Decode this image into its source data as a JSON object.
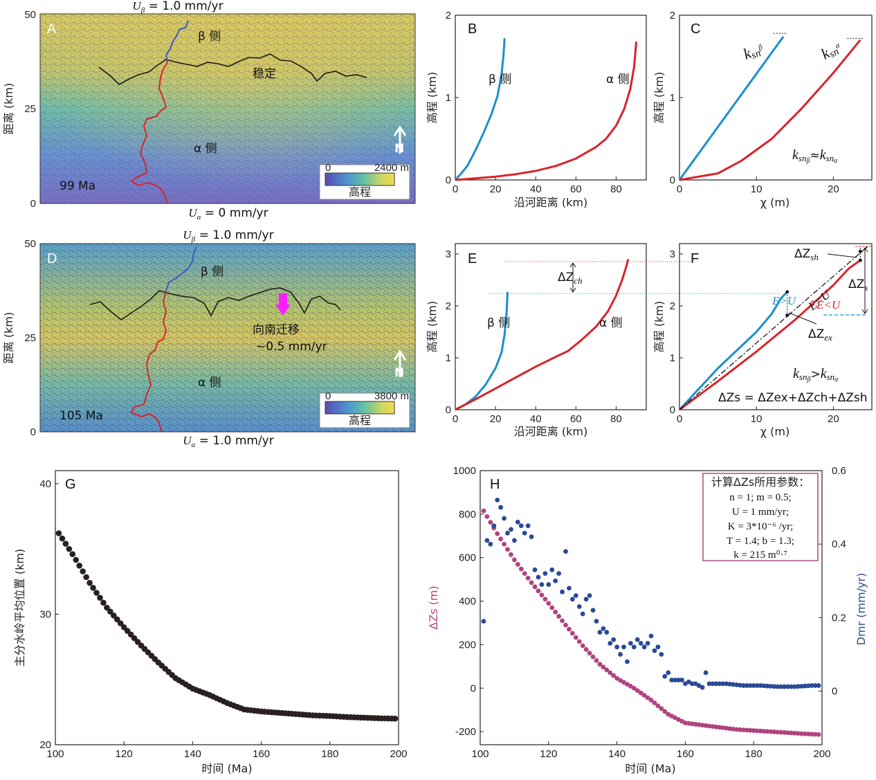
{
  "colors": {
    "red": "#d8232a",
    "blue": "#1a8fcc",
    "magenta": "#b0437e",
    "navy": "#2a4a96",
    "dark": "#2a2020"
  },
  "map_A": {
    "label": "A",
    "top_uplift": "U",
    "top_uplift_sub": "β",
    "top_uplift_val": " = 1.0 mm/yr",
    "bottom_uplift": "U",
    "bottom_uplift_sub": "α",
    "bottom_uplift_val": " = 0 mm/yr",
    "beta_side": "β 侧",
    "alpha_side": "α 侧",
    "stable": "稳定",
    "age": "99 Ma",
    "north": "N",
    "ylabel": "距离 (km)",
    "yticks": [
      "50",
      "25",
      "0"
    ],
    "legend": {
      "min": "0",
      "max": "2400 m",
      "title": "高程"
    }
  },
  "map_D": {
    "label": "D",
    "top_uplift": "U",
    "top_uplift_sub": "β",
    "top_uplift_val": " = 1.0 mm/yr",
    "bottom_uplift": "U",
    "bottom_uplift_sub": "α",
    "bottom_uplift_val": " = 1.0 mm/yr",
    "beta_side": "β 侧",
    "alpha_side": "α 侧",
    "migration_1": "向南迁移",
    "migration_2": "~0.5 mm/yr",
    "age": "105 Ma",
    "north": "N",
    "ylabel": "距离 (km)",
    "yticks": [
      "50",
      "25",
      "0"
    ],
    "legend": {
      "min": "0",
      "max": "3800 m",
      "title": "高程"
    }
  },
  "panel_B": {
    "label": "B",
    "xlabel": "沿河距离 (km)",
    "ylabel": "高程 (km)",
    "beta": "β 侧",
    "alpha": "α 侧"
  },
  "panel_C": {
    "label": "C",
    "xlabel": "χ (m)",
    "ylabel": "高程 (km)",
    "k": "k",
    "sn": "sn",
    "beta_sub": "β",
    "alpha_sub": "α",
    "approx": "≈"
  },
  "panel_E": {
    "label": "E",
    "xlabel": "沿河距离 (km)",
    "ylabel": "高程 (km)",
    "beta": "β 侧",
    "alpha": "α 侧",
    "dz": "ΔZ",
    "dz_sub": "ch"
  },
  "panel_F": {
    "label": "F",
    "xlabel": "χ (m)",
    "ylabel": "高程 (km)",
    "dzsh": "ΔZ",
    "dzsh_sub": "sh",
    "dzs": "ΔZ",
    "dzs_sub": "s",
    "dzex": "ΔZ",
    "dzex_sub": "ex",
    "e_eq_u": "E=U",
    "e_gt_u": "E>U",
    "e_lt_u": "E<U",
    "gt": ">",
    "equation": "ΔZs = ΔZex+ΔZch+ΔZsh"
  },
  "panel_G": {
    "label": "G",
    "xlabel": "时间 (Ma)",
    "ylabel": "主分水岭平均位置 (km)"
  },
  "panel_H": {
    "label": "H",
    "xlabel": "时间 (Ma)",
    "ylabel_left": "ΔZs (m)",
    "ylabel_right": "Dmr (mm/yr)",
    "param_title": "计算ΔZs所用参数：",
    "params": [
      "n = 1; m = 0.5;",
      "U = 1 mm/yr;",
      "K = 3*10⁻⁶ /yr;",
      "T = 1.4; b = 1.3;",
      "k = 215 m⁰·⁷"
    ]
  },
  "chart_data": [
    {
      "panel": "B",
      "type": "line",
      "xlim": [
        0,
        95
      ],
      "ylim": [
        0,
        2
      ],
      "xticks": [
        0,
        20,
        40,
        60,
        80
      ],
      "yticks": [
        0,
        1,
        2
      ],
      "series": [
        {
          "name": "β 侧",
          "color": "#1a8fcc",
          "x": [
            0,
            3,
            6,
            10,
            14,
            18,
            21,
            23,
            24,
            24.5
          ],
          "y": [
            0,
            0.08,
            0.17,
            0.36,
            0.57,
            0.8,
            1.02,
            1.28,
            1.52,
            1.72
          ]
        },
        {
          "name": "α 侧",
          "color": "#d8232a",
          "x": [
            0,
            10,
            20,
            30,
            40,
            50,
            60,
            70,
            75,
            80,
            84,
            87,
            89,
            90
          ],
          "y": [
            0,
            0.02,
            0.04,
            0.07,
            0.11,
            0.17,
            0.26,
            0.4,
            0.5,
            0.66,
            0.86,
            1.1,
            1.38,
            1.68
          ]
        }
      ]
    },
    {
      "panel": "C",
      "type": "line",
      "xlim": [
        0,
        25
      ],
      "ylim": [
        0,
        2
      ],
      "xticks": [
        0,
        10,
        20
      ],
      "yticks": [
        0,
        1,
        2
      ],
      "series": [
        {
          "name": "β",
          "color": "#1a8fcc",
          "x": [
            0,
            13.5
          ],
          "y": [
            0,
            1.74
          ]
        },
        {
          "name": "α",
          "color": "#d8232a",
          "x": [
            0,
            5,
            8,
            12,
            16,
            20,
            23.5
          ],
          "y": [
            0,
            0.08,
            0.23,
            0.5,
            0.88,
            1.3,
            1.7
          ]
        }
      ]
    },
    {
      "panel": "E",
      "type": "line",
      "xlim": [
        0,
        95
      ],
      "ylim": [
        0,
        3.2
      ],
      "xticks": [
        0,
        20,
        40,
        60,
        80
      ],
      "yticks": [
        0,
        1,
        2,
        3
      ],
      "series": [
        {
          "name": "β 侧",
          "color": "#1a8fcc",
          "x": [
            0,
            5,
            10,
            15,
            20,
            23,
            24.5,
            25.5,
            26
          ],
          "y": [
            0,
            0.1,
            0.25,
            0.48,
            0.8,
            1.1,
            1.45,
            1.85,
            2.27
          ]
        },
        {
          "name": "α 侧",
          "color": "#d8232a",
          "x": [
            0,
            10,
            20,
            30,
            40,
            50,
            56,
            63,
            70,
            76,
            80,
            83,
            85,
            86
          ],
          "y": [
            0,
            0.2,
            0.41,
            0.62,
            0.83,
            1.02,
            1.13,
            1.35,
            1.6,
            1.9,
            2.2,
            2.5,
            2.75,
            2.9
          ]
        }
      ]
    },
    {
      "panel": "F",
      "type": "line",
      "xlim": [
        0,
        25
      ],
      "ylim": [
        0,
        3.2
      ],
      "xticks": [
        0,
        10,
        20
      ],
      "yticks": [
        0,
        1,
        2,
        3
      ],
      "series": [
        {
          "name": "β",
          "color": "#1a8fcc",
          "x": [
            0,
            5,
            10,
            12,
            13.2,
            14
          ],
          "y": [
            0,
            0.8,
            1.5,
            1.85,
            2.15,
            2.27
          ]
        },
        {
          "name": "α",
          "color": "#d8232a",
          "x": [
            0,
            5,
            10,
            15,
            20,
            22,
            23.5
          ],
          "y": [
            0,
            0.55,
            1.12,
            1.73,
            2.4,
            2.72,
            2.88
          ]
        },
        {
          "name": "E=U",
          "color": "#111111",
          "x": [
            0,
            24.5
          ],
          "y": [
            0,
            3.15
          ]
        }
      ]
    },
    {
      "panel": "G",
      "type": "scatter",
      "xlim": [
        100,
        200
      ],
      "ylim": [
        20,
        41
      ],
      "xticks": [
        100,
        120,
        140,
        160,
        180,
        200
      ],
      "yticks": [
        20,
        30,
        40
      ],
      "series": [
        {
          "name": "",
          "color": "#2a2020",
          "curve_x": [
            101,
            105,
            110,
            115,
            120,
            125,
            130,
            135,
            140,
            145,
            150,
            155,
            160,
            165,
            170,
            175,
            180,
            185,
            190,
            195,
            199
          ],
          "curve_y": [
            36.2,
            34.6,
            32.4,
            30.5,
            29.0,
            27.6,
            26.3,
            25.1,
            24.3,
            23.8,
            23.2,
            22.7,
            22.55,
            22.45,
            22.35,
            22.25,
            22.2,
            22.12,
            22.07,
            22.02,
            22.0
          ]
        }
      ]
    },
    {
      "panel": "H",
      "type": "scatter",
      "xlim": [
        100,
        200
      ],
      "ylim_left": [
        -260,
        1000
      ],
      "ylim_right": [
        -0.146,
        0.6
      ],
      "xticks": [
        100,
        120,
        140,
        160,
        180,
        200
      ],
      "yticks_left": [
        -200,
        0,
        200,
        400,
        600,
        800,
        1000
      ],
      "yticks_right": [
        0,
        0.2,
        0.4,
        0.6
      ],
      "series": [
        {
          "name": "ΔZs",
          "axis": "left",
          "color": "#b0437e",
          "curve_x": [
            101,
            105,
            110,
            115,
            120,
            125,
            130,
            135,
            140,
            145,
            150,
            155,
            160,
            165,
            170,
            175,
            180,
            185,
            190,
            195,
            199
          ],
          "curve_y": [
            815,
            710,
            590,
            485,
            390,
            290,
            195,
            110,
            45,
            0,
            -55,
            -120,
            -160,
            -170,
            -180,
            -190,
            -195,
            -200,
            -205,
            -210,
            -213
          ]
        },
        {
          "name": "Dmr",
          "axis": "right",
          "color": "#2a4a96",
          "x": [
            101,
            102,
            103,
            104,
            105,
            106,
            107,
            108,
            109,
            110,
            111,
            112,
            113,
            114,
            115,
            116,
            117,
            118,
            119,
            120,
            121,
            122,
            123,
            124,
            125,
            126,
            127,
            128,
            129,
            130,
            131,
            132,
            133,
            134,
            135,
            136,
            137,
            138,
            139,
            140,
            141,
            142,
            143,
            144,
            145,
            146,
            147,
            148,
            149,
            150,
            151,
            152,
            153,
            154,
            155,
            156,
            157,
            158,
            159,
            160,
            161,
            162,
            163,
            164,
            165,
            166
          ],
          "y": [
            0.19,
            0.41,
            0.4,
            0.45,
            0.52,
            0.5,
            0.47,
            0.43,
            0.44,
            0.41,
            0.46,
            0.45,
            0.43,
            0.45,
            0.42,
            0.33,
            0.31,
            0.29,
            0.32,
            0.29,
            0.33,
            0.3,
            0.32,
            0.27,
            0.38,
            0.28,
            0.25,
            0.26,
            0.23,
            0.21,
            0.25,
            0.26,
            0.22,
            0.19,
            0.16,
            0.17,
            0.16,
            0.13,
            0.14,
            0.12,
            0.1,
            0.12,
            0.08,
            0.13,
            0.12,
            0.14,
            0.13,
            0.12,
            0.13,
            0.15,
            0.11,
            0.12,
            0.1,
            0.04,
            0.05,
            0.03,
            0.03,
            0.03,
            0.03,
            0.02,
            0.025,
            0.02,
            0.02,
            0.015,
            0.01,
            0.05
          ],
          "tail_x": [
            167,
            172,
            177,
            182,
            187,
            192,
            197,
            199
          ],
          "tail_y": [
            0.02,
            0.02,
            0.015,
            0.015,
            0.012,
            0.012,
            0.015,
            0.015
          ]
        }
      ]
    }
  ]
}
